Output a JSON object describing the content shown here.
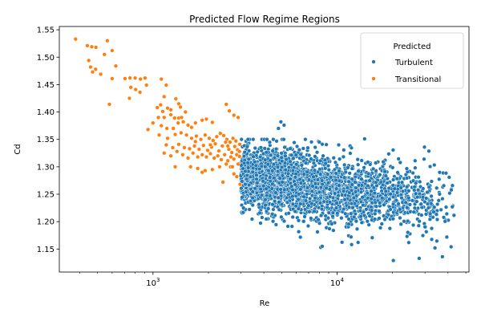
{
  "chart_data": {
    "type": "scatter",
    "title": "Predicted Flow Regime Regions",
    "xlabel": "Re",
    "ylabel": "Cd",
    "xscale": "log",
    "xlim": [
      310,
      52000
    ],
    "ylim": [
      1.108,
      1.556
    ],
    "xticks": [
      {
        "value": 1000,
        "base": "10",
        "exp": "3"
      },
      {
        "value": 10000,
        "base": "10",
        "exp": "4"
      }
    ],
    "yticks": [
      "1.15",
      "1.20",
      "1.25",
      "1.30",
      "1.35",
      "1.40",
      "1.45",
      "1.50",
      "1.55"
    ],
    "grid": false,
    "legend": {
      "title": "Predicted",
      "position": "top-right"
    },
    "series": [
      {
        "name": "Turbulent",
        "color": "#1f77b4",
        "generated": {
          "x_range": [
            3000,
            44000
          ],
          "count": 2450,
          "center_start": 1.285,
          "center_end": 1.23,
          "spread": 0.03
        },
        "points": [
          [
            4950,
            1.382
          ],
          [
            5150,
            1.376
          ],
          [
            4800,
            1.37
          ],
          [
            8000,
            1.345
          ],
          [
            10200,
            1.34
          ],
          [
            14100,
            1.351
          ],
          [
            29800,
            1.336
          ],
          [
            3500,
            1.35
          ],
          [
            3100,
            1.225
          ],
          [
            8150,
            1.153
          ],
          [
            8300,
            1.155
          ],
          [
            11900,
            1.172
          ],
          [
            20200,
            1.129
          ],
          [
            27900,
            1.133
          ],
          [
            37300,
            1.136
          ],
          [
            41600,
            1.154
          ],
          [
            13000,
            1.162
          ],
          [
            34000,
            1.152
          ]
        ]
      },
      {
        "name": "Transitional",
        "color": "#ff7f0e",
        "points": [
          [
            380,
            1.533
          ],
          [
            440,
            1.521
          ],
          [
            465,
            1.519
          ],
          [
            490,
            1.518
          ],
          [
            565,
            1.53
          ],
          [
            600,
            1.512
          ],
          [
            448,
            1.494
          ],
          [
            458,
            1.482
          ],
          [
            488,
            1.478
          ],
          [
            470,
            1.473
          ],
          [
            520,
            1.469
          ],
          [
            545,
            1.505
          ],
          [
            628,
            1.484
          ],
          [
            705,
            1.461
          ],
          [
            750,
            1.462
          ],
          [
            800,
            1.462
          ],
          [
            855,
            1.46
          ],
          [
            905,
            1.462
          ],
          [
            600,
            1.461
          ],
          [
            758,
            1.445
          ],
          [
            805,
            1.441
          ],
          [
            850,
            1.436
          ],
          [
            922,
            1.449
          ],
          [
            745,
            1.425
          ],
          [
            580,
            1.414
          ],
          [
            1110,
            1.46
          ],
          [
            1180,
            1.449
          ],
          [
            1150,
            1.428
          ],
          [
            1100,
            1.413
          ],
          [
            1055,
            1.408
          ],
          [
            1130,
            1.401
          ],
          [
            1200,
            1.407
          ],
          [
            1250,
            1.404
          ],
          [
            1330,
            1.424
          ],
          [
            1380,
            1.415
          ],
          [
            1410,
            1.409
          ],
          [
            1500,
            1.4
          ],
          [
            1070,
            1.39
          ],
          [
            1150,
            1.39
          ],
          [
            1250,
            1.395
          ],
          [
            1310,
            1.389
          ],
          [
            1380,
            1.389
          ],
          [
            1430,
            1.39
          ],
          [
            940,
            1.368
          ],
          [
            1000,
            1.38
          ],
          [
            1110,
            1.375
          ],
          [
            1190,
            1.37
          ],
          [
            1290,
            1.37
          ],
          [
            1370,
            1.38
          ],
          [
            1460,
            1.382
          ],
          [
            1550,
            1.376
          ],
          [
            1620,
            1.372
          ],
          [
            1700,
            1.38
          ],
          [
            1850,
            1.385
          ],
          [
            1950,
            1.387
          ],
          [
            2100,
            1.381
          ],
          [
            2500,
            1.414
          ],
          [
            2750,
            1.394
          ],
          [
            2900,
            1.39
          ],
          [
            2600,
            1.402
          ],
          [
            1080,
            1.358
          ],
          [
            1200,
            1.352
          ],
          [
            1320,
            1.359
          ],
          [
            1420,
            1.362
          ],
          [
            1520,
            1.358
          ],
          [
            1620,
            1.352
          ],
          [
            1720,
            1.356
          ],
          [
            1820,
            1.35
          ],
          [
            1920,
            1.358
          ],
          [
            2020,
            1.352
          ],
          [
            2120,
            1.348
          ],
          [
            2220,
            1.355
          ],
          [
            2320,
            1.361
          ],
          [
            2420,
            1.357
          ],
          [
            2520,
            1.35
          ],
          [
            2620,
            1.345
          ],
          [
            2720,
            1.352
          ],
          [
            2820,
            1.347
          ],
          [
            1180,
            1.34
          ],
          [
            1280,
            1.335
          ],
          [
            1380,
            1.341
          ],
          [
            1480,
            1.335
          ],
          [
            1580,
            1.333
          ],
          [
            1680,
            1.338
          ],
          [
            1780,
            1.332
          ],
          [
            1880,
            1.339
          ],
          [
            1980,
            1.33
          ],
          [
            2080,
            1.336
          ],
          [
            2180,
            1.342
          ],
          [
            2280,
            1.329
          ],
          [
            2380,
            1.338
          ],
          [
            2480,
            1.345
          ],
          [
            2580,
            1.332
          ],
          [
            2680,
            1.326
          ],
          [
            2780,
            1.337
          ],
          [
            2880,
            1.331
          ],
          [
            2960,
            1.341
          ],
          [
            1150,
            1.325
          ],
          [
            1250,
            1.32
          ],
          [
            1350,
            1.328
          ],
          [
            1450,
            1.322
          ],
          [
            1550,
            1.316
          ],
          [
            1650,
            1.325
          ],
          [
            1750,
            1.318
          ],
          [
            1850,
            1.322
          ],
          [
            1950,
            1.318
          ],
          [
            2050,
            1.324
          ],
          [
            2150,
            1.316
          ],
          [
            2250,
            1.32
          ],
          [
            2350,
            1.313
          ],
          [
            2450,
            1.322
          ],
          [
            2550,
            1.311
          ],
          [
            2650,
            1.318
          ],
          [
            2750,
            1.314
          ],
          [
            2850,
            1.322
          ],
          [
            2950,
            1.319
          ],
          [
            1320,
            1.3
          ],
          [
            1600,
            1.3
          ],
          [
            1750,
            1.297
          ],
          [
            1850,
            1.29
          ],
          [
            1920,
            1.293
          ],
          [
            2100,
            1.295
          ],
          [
            2300,
            1.3
          ],
          [
            2500,
            1.305
          ],
          [
            2640,
            1.3
          ],
          [
            2750,
            1.287
          ],
          [
            2850,
            1.282
          ],
          [
            2970,
            1.268
          ],
          [
            2400,
            1.272
          ],
          [
            2700,
            1.3
          ],
          [
            2900,
            1.305
          ],
          [
            2950,
            1.328
          ],
          [
            1700,
            1.346
          ],
          [
            2050,
            1.34
          ],
          [
            2550,
            1.338
          ]
        ]
      }
    ]
  }
}
